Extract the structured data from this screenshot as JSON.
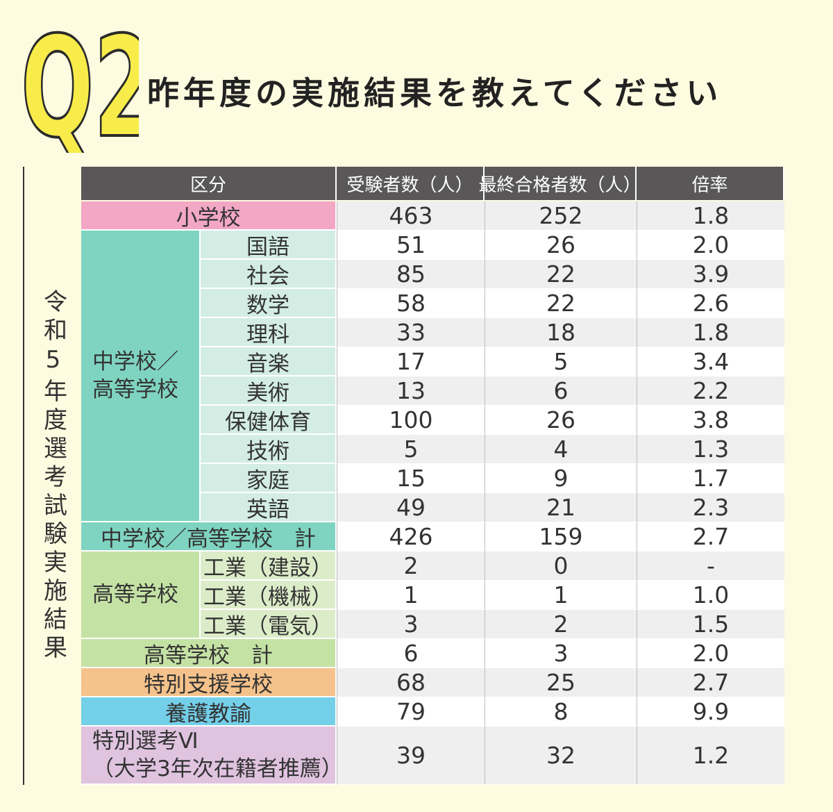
{
  "header": {
    "q": "Q2",
    "title": "昨年度の実施結果を教えてください"
  },
  "side_label": "令和5年度選考試験実施結果",
  "table": {
    "columns": [
      "区分",
      "受験者数（人）",
      "最終合格者数（人）",
      "倍率"
    ],
    "sections": [
      {
        "label": "小学校",
        "values": [
          "463",
          "252",
          "1.8"
        ]
      },
      {
        "label": "中学校／高等学校",
        "items": [
          {
            "label": "国語",
            "values": [
              "51",
              "26",
              "2.0"
            ]
          },
          {
            "label": "社会",
            "values": [
              "85",
              "22",
              "3.9"
            ]
          },
          {
            "label": "数学",
            "values": [
              "58",
              "22",
              "2.6"
            ]
          },
          {
            "label": "理科",
            "values": [
              "33",
              "18",
              "1.8"
            ]
          },
          {
            "label": "音楽",
            "values": [
              "17",
              "5",
              "3.4"
            ]
          },
          {
            "label": "美術",
            "values": [
              "13",
              "6",
              "2.2"
            ]
          },
          {
            "label": "保健体育",
            "values": [
              "100",
              "26",
              "3.8"
            ]
          },
          {
            "label": "技術",
            "values": [
              "5",
              "4",
              "1.3"
            ]
          },
          {
            "label": "家庭",
            "values": [
              "15",
              "9",
              "1.7"
            ]
          },
          {
            "label": "英語",
            "values": [
              "49",
              "21",
              "2.3"
            ]
          }
        ]
      },
      {
        "label": "中学校／高等学校　計",
        "values": [
          "426",
          "159",
          "2.7"
        ]
      },
      {
        "label": "高等学校",
        "items": [
          {
            "label": "工業（建設）",
            "values": [
              "2",
              "0",
              "-"
            ]
          },
          {
            "label": "工業（機械）",
            "values": [
              "1",
              "1",
              "1.0"
            ]
          },
          {
            "label": "工業（電気）",
            "values": [
              "3",
              "2",
              "1.5"
            ]
          }
        ]
      },
      {
        "label": "高等学校　計",
        "values": [
          "6",
          "3",
          "2.0"
        ]
      },
      {
        "label": "特別支援学校",
        "values": [
          "68",
          "25",
          "2.7"
        ]
      },
      {
        "label": "養護教諭",
        "values": [
          "79",
          "8",
          "9.9"
        ]
      },
      {
        "label_lines": [
          "特別選考Ⅵ",
          "（大学3年次在籍者推薦）"
        ],
        "values": [
          "39",
          "32",
          "1.2"
        ]
      }
    ]
  }
}
